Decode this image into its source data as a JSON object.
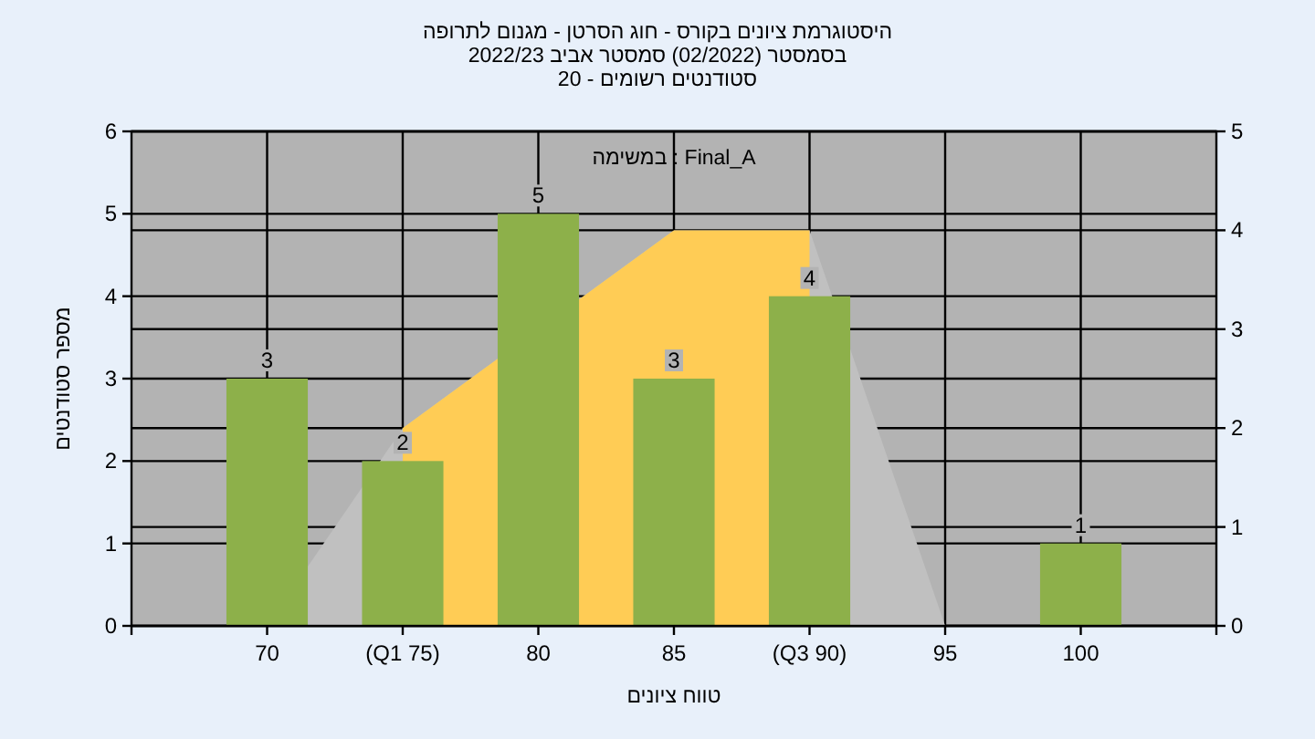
{
  "chart_data": {
    "type": "bar",
    "title": "היסטוגרמת ציונים בקורס - חוג הסרטן - מגנום לתרופה",
    "subtitle": "בסמסטר  (02/2022)  סמסטר אביב 2022/23",
    "xlabel": "טווח ציונים",
    "ylabel": "מספר סטודנטים",
    "annotations": [
      "סטודנטים רשומים - 20",
      "במשימה : Final_A"
    ],
    "categories": [
      "70",
      "(Q1 75)",
      "80",
      "85",
      "(Q3 90)",
      "95",
      "100"
    ],
    "series": [
      {
        "type": "area",
        "axis": "y2",
        "color": "#c0c0c0",
        "values": [
          0,
          2,
          null,
          4,
          4,
          0,
          null
        ]
      },
      {
        "type": "area",
        "axis": "y2",
        "color": "#ffcc55",
        "values": [
          null,
          2,
          null,
          4,
          4,
          null,
          null
        ]
      },
      {
        "color": "#8db04a",
        "values": [
          3,
          2,
          5,
          3,
          4,
          0,
          1
        ],
        "value_labels": [
          "3",
          "2",
          "5",
          "3",
          "4",
          null,
          "1"
        ]
      }
    ],
    "ylim": [
      0,
      6
    ],
    "yticks": [
      0,
      1,
      2,
      3,
      4,
      5,
      6
    ],
    "y2lim": [
      0,
      5
    ],
    "y2ticks": [
      0,
      1,
      2,
      3,
      4,
      5
    ],
    "grid": true
  }
}
